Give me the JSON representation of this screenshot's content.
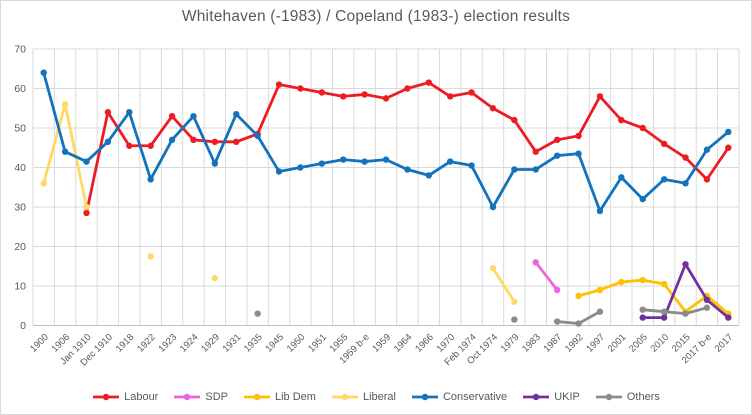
{
  "chart": {
    "title": "Whitehaven (-1983) / Copeland (1983-) election results"
  },
  "chart_data": {
    "type": "line",
    "title": "Whitehaven (-1983) / Copeland (1983-) election results",
    "xlabel": "",
    "ylabel": "",
    "ylim": [
      0,
      70
    ],
    "ytick_step": 10,
    "grid": true,
    "legend_position": "bottom",
    "x_label_rotation_deg": 45,
    "grid_color": "#d9d9d9",
    "axis_line_color": "#bfbfbf",
    "text_color": "#595959",
    "categories": [
      "1900",
      "1906",
      "Jan 1910",
      "Dec 1910",
      "1918",
      "1922",
      "1923",
      "1924",
      "1929",
      "1931",
      "1935",
      "1945",
      "1950",
      "1951",
      "1955",
      "1959 b-e",
      "1959",
      "1964",
      "1966",
      "1970",
      "Feb 1974",
      "Oct 1974",
      "1979",
      "1983",
      "1987",
      "1992",
      "1997",
      "2001",
      "2005",
      "2010",
      "2015",
      "2017 b-e",
      "2017"
    ],
    "series": [
      {
        "name": "Labour",
        "color": "#ed1c24",
        "values": [
          null,
          null,
          28.5,
          54,
          45.5,
          45.5,
          53,
          47,
          46.5,
          46.5,
          48.5,
          61,
          60,
          59,
          58,
          58.5,
          57.5,
          60,
          61.5,
          58,
          59,
          55,
          52,
          44,
          47,
          48,
          58,
          52,
          50,
          46,
          42.5,
          37,
          45
        ]
      },
      {
        "name": "SDP",
        "color": "#ed63e0",
        "values": [
          null,
          null,
          null,
          null,
          null,
          null,
          null,
          null,
          null,
          null,
          null,
          null,
          null,
          null,
          null,
          null,
          null,
          null,
          null,
          null,
          null,
          null,
          null,
          16,
          9,
          null,
          null,
          null,
          null,
          null,
          null,
          null,
          null
        ]
      },
      {
        "name": "Lib Dem",
        "color": "#ffc000",
        "values": [
          null,
          null,
          null,
          null,
          null,
          null,
          null,
          null,
          null,
          null,
          null,
          null,
          null,
          null,
          null,
          null,
          null,
          null,
          null,
          null,
          null,
          null,
          null,
          null,
          null,
          7.5,
          9,
          11,
          11.5,
          10.5,
          3.5,
          7.5,
          3
        ]
      },
      {
        "name": "Liberal",
        "color": "#ffd966",
        "values": [
          36,
          56,
          30,
          null,
          null,
          17.5,
          null,
          null,
          12,
          null,
          null,
          null,
          null,
          null,
          null,
          null,
          null,
          null,
          null,
          null,
          null,
          14.5,
          6,
          null,
          null,
          null,
          null,
          null,
          null,
          null,
          null,
          null,
          null
        ]
      },
      {
        "name": "Conservative",
        "color": "#1272bc",
        "values": [
          64,
          44,
          41.5,
          46.5,
          54,
          37,
          47,
          53,
          41,
          53.5,
          48,
          39,
          40,
          41,
          42,
          41.5,
          42,
          39.5,
          38,
          41.5,
          40.5,
          30,
          39.5,
          39.5,
          43,
          43.5,
          29,
          37.5,
          32,
          37,
          36,
          44.5,
          49
        ]
      },
      {
        "name": "UKIP",
        "color": "#7030a0",
        "values": [
          null,
          null,
          null,
          null,
          null,
          null,
          null,
          null,
          null,
          null,
          null,
          null,
          null,
          null,
          null,
          null,
          null,
          null,
          null,
          null,
          null,
          null,
          null,
          null,
          null,
          null,
          null,
          null,
          2,
          2,
          15.5,
          6.5,
          2
        ]
      },
      {
        "name": "Others",
        "color": "#8b8b8b",
        "values": [
          null,
          null,
          null,
          null,
          null,
          null,
          null,
          null,
          null,
          null,
          3,
          null,
          null,
          null,
          null,
          null,
          null,
          null,
          null,
          null,
          null,
          null,
          1.5,
          null,
          1,
          0.5,
          3.5,
          null,
          4,
          3.5,
          3,
          4.5,
          null
        ]
      }
    ]
  }
}
